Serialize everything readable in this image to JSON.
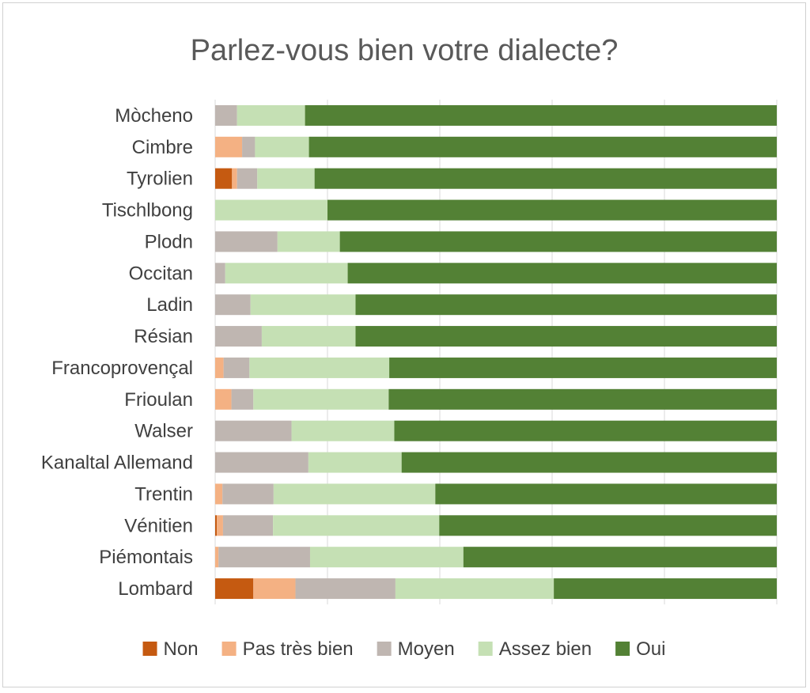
{
  "chart_data": {
    "type": "bar",
    "orientation": "horizontal",
    "stacked": true,
    "title": "Parlez-vous bien votre dialecte?",
    "xlabel": "",
    "ylabel": "",
    "xlim": [
      0,
      100
    ],
    "grid": true,
    "legend_position": "bottom",
    "categories": [
      "Mòcheno",
      "Cimbre",
      "Tyrolien",
      "Tischlbong",
      "Plodn",
      "Occitan",
      "Ladin",
      "Résian",
      "Francoprovençal",
      "Frioulan",
      "Walser",
      "Kanaltal Allemand",
      "Trentin",
      "Vénitien",
      "Piémontais",
      "Lombard"
    ],
    "series": [
      {
        "name": "Non",
        "color": "#c55a11",
        "values": [
          0,
          0,
          3,
          0,
          0,
          0,
          0,
          0,
          0,
          0,
          0,
          0,
          0,
          0.3,
          0,
          6.8
        ]
      },
      {
        "name": "Pas très bien",
        "color": "#f4b183",
        "values": [
          0,
          4.8,
          0.9,
          0,
          0,
          0,
          0,
          0,
          1.5,
          2.9,
          0,
          0,
          1.3,
          1.1,
          0.6,
          7.5
        ]
      },
      {
        "name": "Moyen",
        "color": "#bfb6b1",
        "values": [
          3.9,
          2.3,
          3.6,
          0,
          11.1,
          1.8,
          6.3,
          8.3,
          4.6,
          3.9,
          13.6,
          16.6,
          9.1,
          8.9,
          16.3,
          17.8
        ]
      },
      {
        "name": "Assez bien",
        "color": "#c5e0b4",
        "values": [
          12.1,
          9.6,
          10.2,
          20,
          11.1,
          21.8,
          18.7,
          16.7,
          24.9,
          24.1,
          18.3,
          16.6,
          28.8,
          29.6,
          27.3,
          28.2
        ]
      },
      {
        "name": "Oui",
        "color": "#538135",
        "values": [
          84,
          83.3,
          82.3,
          80,
          77.8,
          76.4,
          75,
          75,
          69,
          69.1,
          68.1,
          66.8,
          60.8,
          60.1,
          55.8,
          39.7
        ]
      }
    ]
  }
}
